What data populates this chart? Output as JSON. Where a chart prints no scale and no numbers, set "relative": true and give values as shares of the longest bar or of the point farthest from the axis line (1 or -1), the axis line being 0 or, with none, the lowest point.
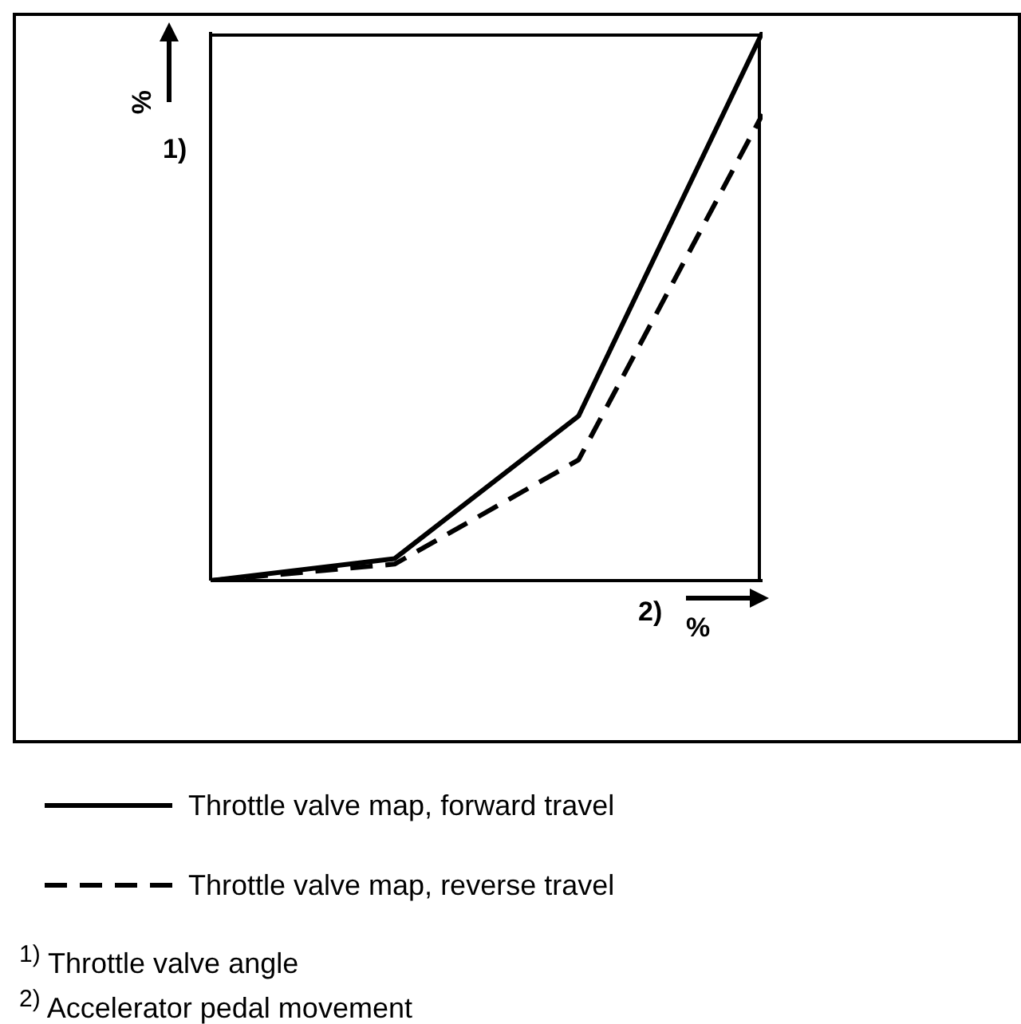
{
  "chart_data": {
    "type": "line",
    "relative": true,
    "categories": [
      null,
      null,
      null,
      null
    ],
    "tick_labels": false,
    "ylabel": "%",
    "xlabel": "%",
    "legend": "bottom",
    "grid": false,
    "marker": "none",
    "series": [
      {
        "name": "Throttle valve map, forward travel",
        "color": "#000000",
        "line_style": "solid",
        "values": [
          0,
          0.04,
          0.3,
          1
        ]
      },
      {
        "name": "Throttle valve map, reverse travel",
        "color": "#000000",
        "line_style": "dashed",
        "values": [
          0,
          0.03,
          0.22,
          0.85
        ]
      }
    ],
    "annotations": [
      "1)",
      "2)",
      "$^{1)}$ Throttle valve angle",
      "$^{2)}$ Accelerator pedal movement"
    ]
  }
}
